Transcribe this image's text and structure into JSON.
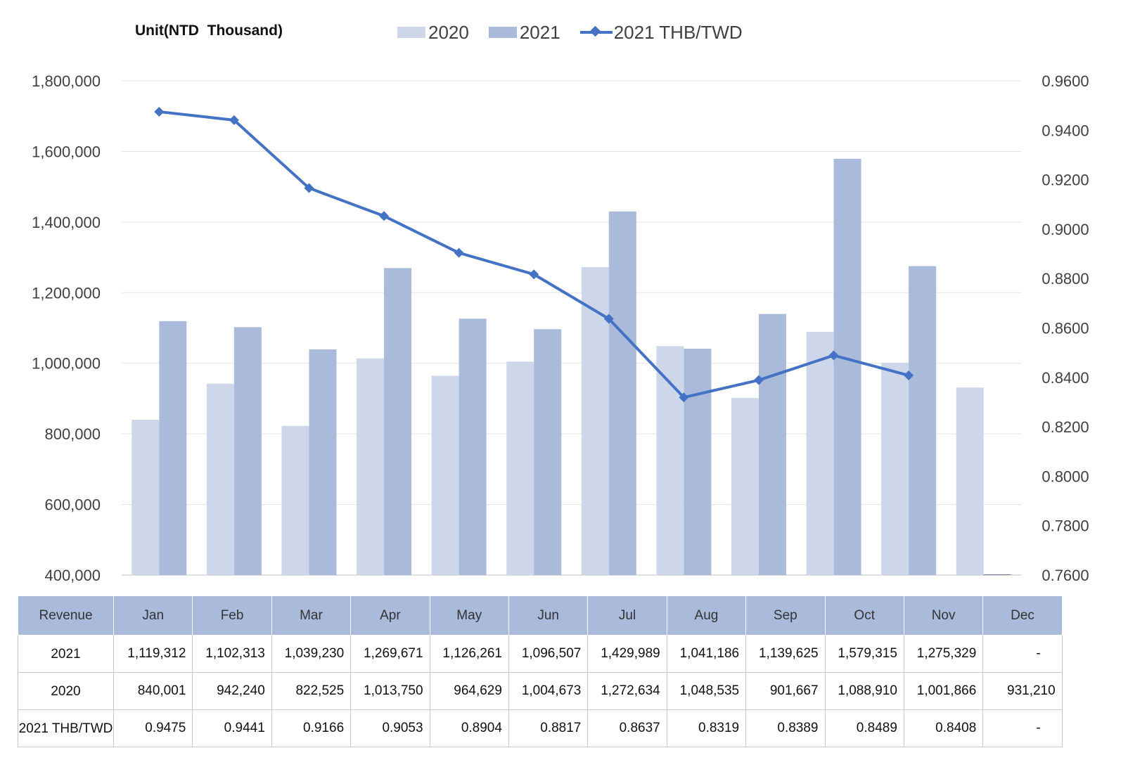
{
  "unit_label": "Unit(NTD  Thousand)",
  "legend": {
    "items": [
      {
        "label": "2020",
        "color": "#CDD7E9"
      },
      {
        "label": "2021",
        "color": "#A9BADB"
      },
      {
        "label": "2021 THB/TWD",
        "color": "#4472C4"
      }
    ]
  },
  "chart_data": {
    "type": "bar",
    "categories": [
      "Jan",
      "Feb",
      "Mar",
      "Apr",
      "May",
      "Jun",
      "Jul",
      "Aug",
      "Sep",
      "Oct",
      "Nov",
      "Dec"
    ],
    "series": [
      {
        "name": "2020",
        "type": "bar",
        "axis": "left",
        "color": "#CDD7E9",
        "values": [
          840001,
          942240,
          822525,
          1013750,
          964629,
          1004673,
          1272634,
          1048535,
          901667,
          1088910,
          1001866,
          931210
        ]
      },
      {
        "name": "2021",
        "type": "bar",
        "axis": "left",
        "color": "#A9BADB",
        "values": [
          1119312,
          1102313,
          1039230,
          1269671,
          1126261,
          1096507,
          1429989,
          1041186,
          1139625,
          1579315,
          1275329,
          null
        ]
      },
      {
        "name": "2021 THB/TWD",
        "type": "line",
        "axis": "right",
        "color": "#4472C4",
        "values": [
          0.9475,
          0.9441,
          0.9166,
          0.9053,
          0.8904,
          0.8817,
          0.8637,
          0.8319,
          0.8389,
          0.8489,
          0.8408,
          null
        ]
      }
    ],
    "y_left": {
      "min": 400000,
      "max": 1800000,
      "ticks": [
        "1,800,000",
        "1,600,000",
        "1,400,000",
        "1,200,000",
        "1,000,000",
        "800,000",
        "600,000",
        "400,000"
      ]
    },
    "y_right": {
      "min": 0.76,
      "max": 0.96,
      "ticks": [
        "0.9600",
        "0.9400",
        "0.9200",
        "0.9000",
        "0.8800",
        "0.8600",
        "0.8400",
        "0.8200",
        "0.8000",
        "0.7800",
        "0.7600"
      ]
    },
    "grid": true,
    "legend_position": "top"
  },
  "table": {
    "header_label": "Revenue",
    "months": [
      "Jan",
      "Feb",
      "Mar",
      "Apr",
      "May",
      "Jun",
      "Jul",
      "Aug",
      "Sep",
      "Oct",
      "Nov",
      "Dec"
    ],
    "rows": [
      {
        "label": "2021",
        "cells": [
          "1,119,312",
          "1,102,313",
          "1,039,230",
          "1,269,671",
          "1,126,261",
          "1,096,507",
          "1,429,989",
          "1,041,186",
          "1,139,625",
          "1,579,315",
          "1,275,329",
          "-"
        ]
      },
      {
        "label": "2020",
        "cells": [
          "840,001",
          "942,240",
          "822,525",
          "1,013,750",
          "964,629",
          "1,004,673",
          "1,272,634",
          "1,048,535",
          "901,667",
          "1,088,910",
          "1,001,866",
          "931,210"
        ]
      },
      {
        "label": "2021 THB/TWD",
        "cells": [
          "0.9475",
          "0.9441",
          "0.9166",
          "0.9053",
          "0.8904",
          "0.8817",
          "0.8637",
          "0.8319",
          "0.8389",
          "0.8489",
          "0.8408",
          "-"
        ]
      }
    ]
  }
}
